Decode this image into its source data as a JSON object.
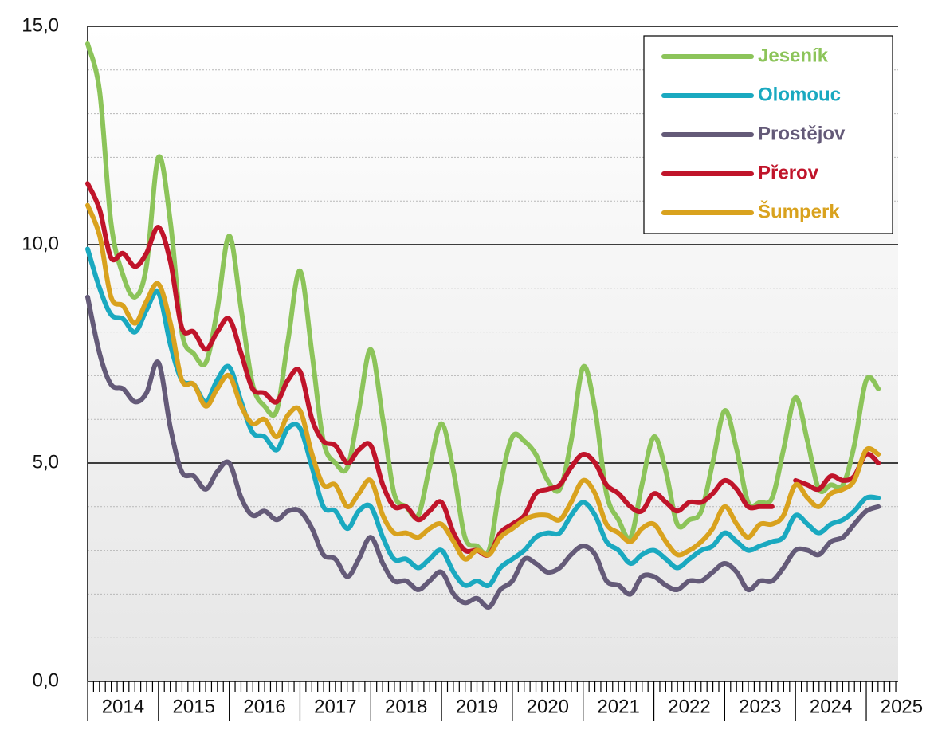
{
  "chart_data": {
    "type": "line",
    "x": [
      2014,
      2014.17,
      2014.33,
      2014.5,
      2014.67,
      2014.83,
      2015,
      2015.17,
      2015.33,
      2015.5,
      2015.67,
      2015.83,
      2016,
      2016.17,
      2016.33,
      2016.5,
      2016.67,
      2016.83,
      2017,
      2017.17,
      2017.33,
      2017.5,
      2017.67,
      2017.83,
      2018,
      2018.17,
      2018.33,
      2018.5,
      2018.67,
      2018.83,
      2019,
      2019.17,
      2019.33,
      2019.5,
      2019.67,
      2019.83,
      2020,
      2020.17,
      2020.33,
      2020.5,
      2020.67,
      2020.83,
      2021,
      2021.17,
      2021.33,
      2021.5,
      2021.67,
      2021.83,
      2022,
      2022.17,
      2022.33,
      2022.5,
      2022.67,
      2022.83,
      2023,
      2023.17,
      2023.33,
      2023.5,
      2023.67,
      2023.83,
      2024,
      2024.17,
      2024.33,
      2024.5,
      2024.67,
      2024.83,
      2025,
      2025.17
    ],
    "series": [
      {
        "name": "Jeseník",
        "color": "#8cc45a",
        "values": [
          14.6,
          13.5,
          10.5,
          9.3,
          8.8,
          9.5,
          12.0,
          10.5,
          8.0,
          7.5,
          7.3,
          8.5,
          10.2,
          8.5,
          6.8,
          6.3,
          6.2,
          7.8,
          9.4,
          7.5,
          5.5,
          5.0,
          4.9,
          6.2,
          7.6,
          6.0,
          4.3,
          4.0,
          3.8,
          4.9,
          5.9,
          4.8,
          3.3,
          3.1,
          3.0,
          4.5,
          5.6,
          5.5,
          5.2,
          4.6,
          4.4,
          5.5,
          7.2,
          6.2,
          4.3,
          3.7,
          3.3,
          4.5,
          5.6,
          4.8,
          3.6,
          3.7,
          3.9,
          5.0,
          6.2,
          5.3,
          4.1,
          4.1,
          4.2,
          5.3,
          6.5,
          5.5,
          4.4,
          4.5,
          4.5,
          5.4,
          6.9,
          6.7
        ]
      },
      {
        "name": "Olomouc",
        "color": "#1aa9c0",
        "values": [
          9.9,
          9.0,
          8.4,
          8.3,
          8.0,
          8.5,
          8.9,
          7.7,
          6.9,
          6.8,
          6.4,
          6.9,
          7.2,
          6.4,
          5.7,
          5.6,
          5.3,
          5.8,
          5.8,
          4.9,
          4.0,
          3.9,
          3.5,
          3.9,
          4.0,
          3.3,
          2.8,
          2.8,
          2.6,
          2.8,
          3.0,
          2.5,
          2.2,
          2.3,
          2.2,
          2.6,
          2.8,
          3.0,
          3.3,
          3.4,
          3.4,
          3.8,
          4.1,
          3.8,
          3.2,
          3.0,
          2.7,
          2.9,
          3.0,
          2.8,
          2.6,
          2.8,
          3.0,
          3.1,
          3.4,
          3.2,
          3.0,
          3.1,
          3.2,
          3.3,
          3.8,
          3.6,
          3.4,
          3.6,
          3.7,
          3.9,
          4.2,
          4.2
        ]
      },
      {
        "name": "Prostějov",
        "color": "#645a78",
        "values": [
          8.8,
          7.5,
          6.8,
          6.7,
          6.4,
          6.6,
          7.3,
          5.8,
          4.8,
          4.7,
          4.4,
          4.8,
          5.0,
          4.2,
          3.8,
          3.9,
          3.7,
          3.9,
          3.9,
          3.5,
          2.9,
          2.8,
          2.4,
          2.8,
          3.3,
          2.7,
          2.3,
          2.3,
          2.1,
          2.3,
          2.5,
          2.0,
          1.8,
          1.9,
          1.7,
          2.1,
          2.3,
          2.8,
          2.7,
          2.5,
          2.6,
          2.9,
          3.1,
          2.9,
          2.3,
          2.2,
          2.0,
          2.4,
          2.4,
          2.2,
          2.1,
          2.3,
          2.3,
          2.5,
          2.7,
          2.5,
          2.1,
          2.3,
          2.3,
          2.6,
          3.0,
          3.0,
          2.9,
          3.2,
          3.3,
          3.6,
          3.9,
          4.0
        ]
      },
      {
        "name": "Přerov",
        "color": "#c0142a",
        "values": [
          11.4,
          10.8,
          9.7,
          9.8,
          9.5,
          9.8,
          10.4,
          9.6,
          8.1,
          8.0,
          7.6,
          8.0,
          8.3,
          7.5,
          6.7,
          6.6,
          6.4,
          6.9,
          7.1,
          6.0,
          5.5,
          5.4,
          5.0,
          5.3,
          5.4,
          4.5,
          4.0,
          4.0,
          3.7,
          3.9,
          4.1,
          3.4,
          3.0,
          3.0,
          2.9,
          3.4,
          3.6,
          3.8,
          4.3,
          4.4,
          4.5,
          4.9,
          5.2,
          5.0,
          4.5,
          4.3,
          4.0,
          3.9,
          4.3,
          4.1,
          3.9,
          4.1,
          4.1,
          4.3,
          4.6,
          4.4,
          4.0,
          4.0,
          4.0,
          null,
          4.6,
          4.5,
          4.4,
          4.7,
          4.6,
          4.7,
          5.2,
          5.0
        ]
      },
      {
        "name": "Šumperk",
        "color": "#d9a21e",
        "values": [
          10.9,
          10.2,
          8.8,
          8.6,
          8.2,
          8.7,
          9.1,
          8.2,
          6.9,
          6.8,
          6.3,
          6.7,
          7.0,
          6.3,
          5.9,
          6.0,
          5.6,
          6.1,
          6.2,
          5.2,
          4.5,
          4.5,
          4.0,
          4.3,
          4.6,
          3.8,
          3.4,
          3.4,
          3.3,
          3.5,
          3.6,
          3.2,
          2.8,
          3.0,
          2.9,
          3.3,
          3.5,
          3.7,
          3.8,
          3.8,
          3.7,
          4.1,
          4.6,
          4.3,
          3.6,
          3.4,
          3.2,
          3.5,
          3.6,
          3.2,
          2.9,
          3.0,
          3.2,
          3.5,
          4.0,
          3.6,
          3.3,
          3.6,
          3.6,
          3.8,
          4.5,
          4.2,
          4.0,
          4.3,
          4.4,
          4.6,
          5.3,
          5.2
        ]
      }
    ],
    "xlim": [
      2014,
      2025.45
    ],
    "xticks": [
      {
        "value": 2014.5,
        "label": "2014"
      },
      {
        "value": 2015.5,
        "label": "2015"
      },
      {
        "value": 2016.5,
        "label": "2016"
      },
      {
        "value": 2017.5,
        "label": "2017"
      },
      {
        "value": 2018.5,
        "label": "2018"
      },
      {
        "value": 2019.5,
        "label": "2019"
      },
      {
        "value": 2020.5,
        "label": "2020"
      },
      {
        "value": 2021.5,
        "label": "2021"
      },
      {
        "value": 2022.5,
        "label": "2022"
      },
      {
        "value": 2023.5,
        "label": "2023"
      },
      {
        "value": 2024.5,
        "label": "2024"
      },
      {
        "value": 2025.5,
        "label": "2025"
      }
    ],
    "ylim": [
      0,
      15
    ],
    "yticks": [
      {
        "value": 0,
        "label": "0,0"
      },
      {
        "value": 5,
        "label": "5,0"
      },
      {
        "value": 10,
        "label": "10,0"
      },
      {
        "value": 15,
        "label": "15,0"
      }
    ],
    "grid": true,
    "legend": "upper right"
  }
}
